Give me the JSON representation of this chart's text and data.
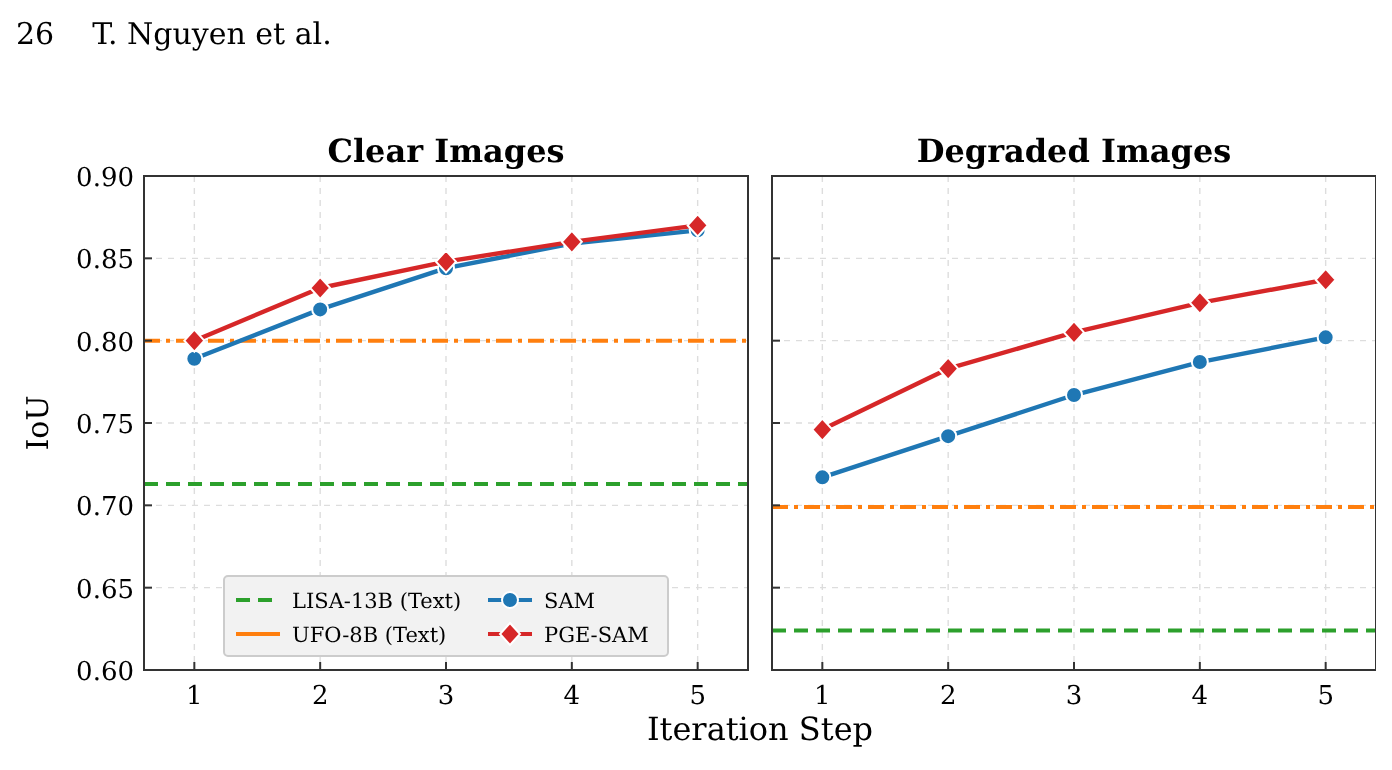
{
  "chart_data": [
    {
      "type": "line",
      "title": "Clear Images",
      "xlabel": "Iteration Step",
      "ylabel": "IoU",
      "annotations": [
        "26    T. Nguyen et al."
      ],
      "x": [
        1,
        2,
        3,
        4,
        5
      ],
      "xlim": [
        0.6,
        5.4
      ],
      "xticks": [
        1,
        2,
        3,
        4,
        5
      ],
      "ylim": [
        0.6,
        0.9
      ],
      "yticks": [
        {
          "value": 0.6,
          "label": "0.60"
        },
        {
          "value": 0.65,
          "label": "0.65"
        },
        {
          "value": 0.7,
          "label": "0.70"
        },
        {
          "value": 0.75,
          "label": "0.75"
        },
        {
          "value": 0.8,
          "label": "0.80"
        },
        {
          "value": 0.85,
          "label": "0.85"
        },
        {
          "value": 0.9,
          "label": "0.90"
        }
      ],
      "grid": true,
      "legend": "bottom",
      "line_style": "solid",
      "ref_lines": [
        {
          "axis": "y",
          "value": 0.713,
          "label": "LISA-13B (Text)",
          "color": "#2ca02c",
          "line_style": "dashed"
        },
        {
          "axis": "y",
          "value": 0.8,
          "label": "UFO-8B (Text)",
          "color": "#ff7f0e",
          "line_style": "dashdot"
        }
      ],
      "series": [
        {
          "name": "SAM",
          "color": "#1f77b4",
          "marker": "circle",
          "values": [
            0.789,
            0.819,
            0.844,
            0.859,
            0.867
          ]
        },
        {
          "name": "PGE-SAM",
          "color": "#d62728",
          "marker": "diamond",
          "values": [
            0.8,
            0.832,
            0.848,
            0.86,
            0.87
          ]
        }
      ]
    },
    {
      "type": "line",
      "title": "Degraded Images",
      "x": [
        1,
        2,
        3,
        4,
        5
      ],
      "xlim": [
        0.6,
        5.4
      ],
      "xticks": [
        1,
        2,
        3,
        4,
        5
      ],
      "ylim": [
        0.6,
        0.9
      ],
      "yticks": [
        0.6,
        0.65,
        0.7,
        0.75,
        0.8,
        0.85,
        0.9
      ],
      "grid": true,
      "tick_labels": "x",
      "line_style": "solid",
      "ref_lines": [
        {
          "axis": "y",
          "value": 0.624,
          "color": "#2ca02c",
          "line_style": "dashed"
        },
        {
          "axis": "y",
          "value": 0.699,
          "color": "#ff7f0e",
          "line_style": "dashdot"
        }
      ],
      "series": [
        {
          "color": "#1f77b4",
          "marker": "circle",
          "values": [
            0.717,
            0.742,
            0.767,
            0.787,
            0.802
          ]
        },
        {
          "color": "#d62728",
          "marker": "diamond",
          "values": [
            0.746,
            0.783,
            0.805,
            0.823,
            0.837
          ]
        }
      ]
    }
  ]
}
